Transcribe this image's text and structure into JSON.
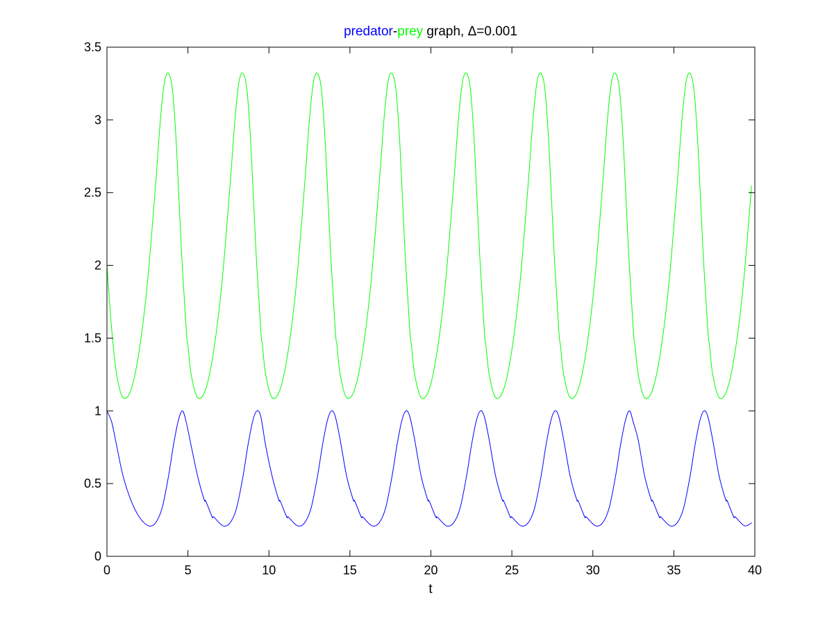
{
  "chart_data": {
    "type": "line",
    "title": {
      "parts": [
        {
          "text": "predator",
          "color": "#0000ff"
        },
        {
          "text": "-",
          "color": "#000000"
        },
        {
          "text": "prey",
          "color": "#00ff00"
        },
        {
          "text": " graph, Δ=0.001",
          "color": "#000000"
        }
      ]
    },
    "xlabel": "t",
    "ylabel": "",
    "xlim": [
      0,
      40
    ],
    "ylim": [
      0,
      3.5
    ],
    "x_ticks": [
      0,
      5,
      10,
      15,
      20,
      25,
      30,
      35,
      40
    ],
    "x_tick_labels": [
      "0",
      "5",
      "10",
      "15",
      "20",
      "25",
      "30",
      "35",
      "40"
    ],
    "y_ticks": [
      0,
      0.5,
      1,
      1.5,
      2,
      2.5,
      3,
      3.5
    ],
    "y_tick_labels": [
      "0",
      "0.5",
      "1",
      "1.5",
      "2",
      "2.5",
      "3",
      "3.5"
    ],
    "grid": false,
    "series": [
      {
        "name": "predator",
        "color": "#0000ff",
        "x": [
          0,
          0.3,
          0.6,
          1.0,
          1.5,
          2.0,
          2.56,
          3.0,
          3.4,
          3.8,
          4.1,
          4.4,
          4.66,
          4.9,
          5.2,
          5.6,
          6.0,
          6.5,
          7.16
        ],
        "y": [
          1.0,
          0.92,
          0.76,
          0.55,
          0.38,
          0.27,
          0.21,
          0.23,
          0.33,
          0.55,
          0.76,
          0.93,
          1.0,
          0.96,
          0.8,
          0.55,
          0.39,
          0.27,
          0.21
        ],
        "period": 4.6
      },
      {
        "name": "prey",
        "color": "#00ff00",
        "x": [
          0,
          0.3,
          0.6,
          1.0,
          1.5,
          2.0,
          2.5,
          3.0,
          3.3,
          3.55,
          3.8,
          4.05,
          4.3,
          4.6,
          5.0,
          5.6
        ],
        "y": [
          2.0,
          1.55,
          1.25,
          1.09,
          1.15,
          1.42,
          1.88,
          2.55,
          3.0,
          3.26,
          3.32,
          3.2,
          2.8,
          2.1,
          1.45,
          1.09
        ],
        "period": 4.6
      }
    ]
  }
}
